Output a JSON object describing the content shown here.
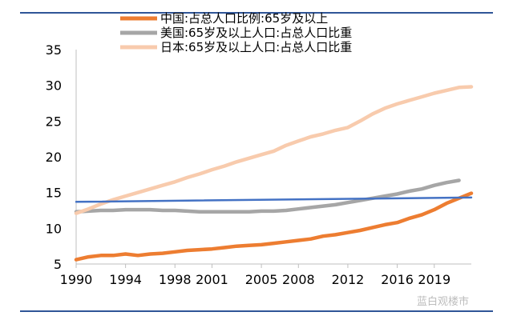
{
  "chart_data": {
    "type": "line",
    "title": "",
    "xlabel": "",
    "ylabel": "",
    "x": [
      1990,
      1991,
      1992,
      1993,
      1994,
      1995,
      1996,
      1997,
      1998,
      1999,
      2000,
      2001,
      2002,
      2003,
      2004,
      2005,
      2006,
      2007,
      2008,
      2009,
      2010,
      2011,
      2012,
      2013,
      2014,
      2015,
      2016,
      2017,
      2018,
      2019,
      2020,
      2021,
      2022
    ],
    "xticks": [
      "1990",
      "1994",
      "1998",
      "2001",
      "2005",
      "2008",
      "2012",
      "2016",
      "2019"
    ],
    "yticks": [
      "5",
      "10",
      "15",
      "20",
      "25",
      "30",
      "35"
    ],
    "ylim": [
      5,
      35
    ],
    "grid": false,
    "legend_position": "top",
    "series": [
      {
        "name": "中国:占总人口比例:65岁及以上",
        "color": "#ed7d31",
        "values": [
          5.6,
          6.0,
          6.2,
          6.2,
          6.4,
          6.2,
          6.4,
          6.5,
          6.7,
          6.9,
          7.0,
          7.1,
          7.3,
          7.5,
          7.6,
          7.7,
          7.9,
          8.1,
          8.3,
          8.5,
          8.9,
          9.1,
          9.4,
          9.7,
          10.1,
          10.5,
          10.8,
          11.4,
          11.9,
          12.6,
          13.5,
          14.2,
          14.9
        ]
      },
      {
        "name": "美国:65岁及以上人口:占总人口比重",
        "color": "#a6a6a6",
        "values": [
          12.3,
          12.4,
          12.5,
          12.5,
          12.6,
          12.6,
          12.6,
          12.5,
          12.5,
          12.4,
          12.3,
          12.3,
          12.3,
          12.3,
          12.3,
          12.4,
          12.4,
          12.5,
          12.7,
          12.9,
          13.1,
          13.3,
          13.6,
          13.9,
          14.2,
          14.5,
          14.8,
          15.2,
          15.5,
          16.0,
          16.4,
          16.7,
          null
        ]
      },
      {
        "name": "日本:65岁及以上人口:占总人口比重",
        "color": "#f8cbad",
        "values": [
          12.1,
          12.7,
          13.4,
          14.0,
          14.5,
          15.0,
          15.5,
          16.0,
          16.5,
          17.1,
          17.6,
          18.2,
          18.7,
          19.3,
          19.8,
          20.3,
          20.8,
          21.6,
          22.2,
          22.8,
          23.2,
          23.7,
          24.1,
          25.0,
          26.0,
          26.8,
          27.4,
          27.9,
          28.4,
          28.9,
          29.3,
          29.7,
          29.8
        ]
      },
      {
        "color": "#4472c4",
        "values": [
          13.7,
          null,
          null,
          null,
          null,
          null,
          null,
          null,
          null,
          null,
          null,
          null,
          null,
          null,
          null,
          null,
          null,
          null,
          null,
          null,
          null,
          null,
          null,
          null,
          null,
          null,
          null,
          null,
          null,
          null,
          null,
          null,
          14.3
        ]
      }
    ]
  },
  "watermark": "蓝白观楼市"
}
